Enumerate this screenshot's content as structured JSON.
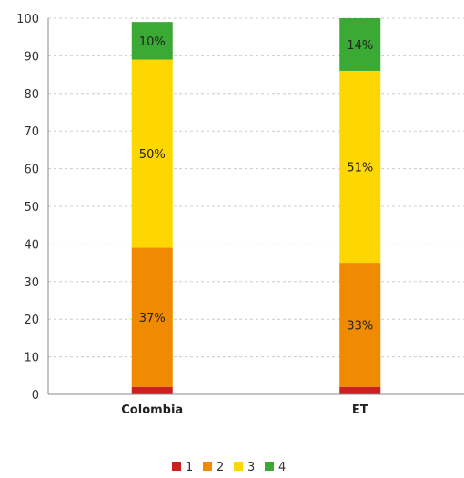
{
  "chart_data": {
    "type": "bar",
    "stacked": true,
    "categories": [
      "Colombia",
      "ET"
    ],
    "series": [
      {
        "name": "1",
        "color": "#cc1f1f",
        "values": [
          2,
          2
        ],
        "labels": [
          "",
          ""
        ]
      },
      {
        "name": "2",
        "color": "#f08a00",
        "values": [
          37,
          33
        ],
        "labels": [
          "37%",
          "33%"
        ]
      },
      {
        "name": "3",
        "color": "#ffd700",
        "values": [
          50,
          51
        ],
        "labels": [
          "50%",
          "51%"
        ]
      },
      {
        "name": "4",
        "color": "#3aaa35",
        "values": [
          10,
          14
        ],
        "labels": [
          "10%",
          "14%"
        ]
      }
    ],
    "ylim": [
      0,
      100
    ],
    "yticks": [
      0,
      10,
      20,
      30,
      40,
      50,
      60,
      70,
      80,
      90,
      100
    ],
    "grid": true,
    "legend_position": "bottom-center"
  }
}
